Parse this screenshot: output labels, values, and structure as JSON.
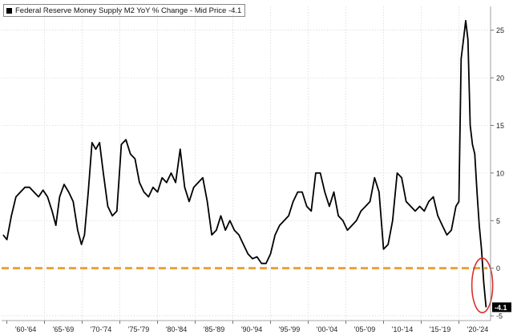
{
  "chart_data": {
    "type": "line",
    "legend": {
      "label": "Federal Reserve Money Supply M2 YoY % Change - Mid Price -4.1",
      "position": "top-left"
    },
    "x_ticks": [
      "'60-'64",
      "'65-'69",
      "'70-'74",
      "'75-'79",
      "'80-'84",
      "'85-'89",
      "'90-'94",
      "'95-'99",
      "'00-'04",
      "'05-'09",
      "'10-'14",
      "'15-'19",
      "'20-'24"
    ],
    "y_ticks": [
      25,
      20,
      15,
      10,
      5,
      0,
      -5
    ],
    "ylim": [
      -5.5,
      27.5
    ],
    "xlim": [
      1959.3,
      2024.2
    ],
    "grid": true,
    "last_value_label": "-4.1",
    "reference_line": {
      "y": 0,
      "color": "#E8A33A",
      "style": "dashed"
    },
    "highlight_circle": {
      "x": 2023.1,
      "y": -1.8,
      "color": "#D9302C"
    },
    "series": [
      {
        "color": "#000000",
        "x": [
          1959.5,
          1960.0,
          1960.6,
          1961.2,
          1961.8,
          1962.4,
          1963.0,
          1963.6,
          1964.2,
          1964.8,
          1965.4,
          1966.0,
          1966.5,
          1967.0,
          1967.6,
          1968.2,
          1968.8,
          1969.4,
          1969.9,
          1970.3,
          1970.8,
          1971.3,
          1971.8,
          1972.3,
          1972.8,
          1973.4,
          1974.0,
          1974.6,
          1975.2,
          1975.8,
          1976.4,
          1977.0,
          1977.6,
          1978.2,
          1978.8,
          1979.4,
          1980.0,
          1980.6,
          1981.2,
          1981.8,
          1982.4,
          1983.0,
          1983.6,
          1984.2,
          1984.8,
          1985.4,
          1986.0,
          1986.6,
          1987.2,
          1987.8,
          1988.4,
          1989.0,
          1989.6,
          1990.2,
          1990.8,
          1991.4,
          1992.0,
          1992.6,
          1993.2,
          1993.8,
          1994.4,
          1995.0,
          1995.6,
          1996.2,
          1996.8,
          1997.4,
          1998.0,
          1998.6,
          1999.2,
          1999.8,
          2000.4,
          2001.0,
          2001.6,
          2002.2,
          2002.8,
          2003.4,
          2004.0,
          2004.6,
          2005.2,
          2005.8,
          2006.4,
          2007.0,
          2007.6,
          2008.2,
          2008.8,
          2009.4,
          2010.0,
          2010.6,
          2011.2,
          2011.8,
          2012.4,
          2013.0,
          2013.6,
          2014.2,
          2014.8,
          2015.4,
          2016.0,
          2016.6,
          2017.2,
          2017.8,
          2018.4,
          2019.0,
          2019.6,
          2020.0,
          2020.3,
          2020.6,
          2020.9,
          2021.2,
          2021.5,
          2021.8,
          2022.1,
          2022.4,
          2022.7,
          2023.0,
          2023.3,
          2023.6
        ],
        "y": [
          3.5,
          3.0,
          5.5,
          7.5,
          8.0,
          8.5,
          8.5,
          8.0,
          7.5,
          8.2,
          7.5,
          6.0,
          4.5,
          7.5,
          8.8,
          8.0,
          7.0,
          4.0,
          2.5,
          3.5,
          8.0,
          13.2,
          12.5,
          13.2,
          10.0,
          6.5,
          5.5,
          6.0,
          13.0,
          13.5,
          12.0,
          11.5,
          9.0,
          8.0,
          7.5,
          8.5,
          8.0,
          9.5,
          9.0,
          10.0,
          9.0,
          12.5,
          8.5,
          7.0,
          8.5,
          9.0,
          9.5,
          7.0,
          3.5,
          4.0,
          5.5,
          4.0,
          5.0,
          4.0,
          3.5,
          2.5,
          1.5,
          1.0,
          1.2,
          0.5,
          0.5,
          1.5,
          3.5,
          4.5,
          5.0,
          5.5,
          7.0,
          8.0,
          8.0,
          6.5,
          6.0,
          10.0,
          10.0,
          8.0,
          6.5,
          8.0,
          5.5,
          5.0,
          4.0,
          4.5,
          5.0,
          6.0,
          6.5,
          7.0,
          9.5,
          8.0,
          2.0,
          2.5,
          5.0,
          10.0,
          9.5,
          7.0,
          6.5,
          6.0,
          6.5,
          6.0,
          7.0,
          7.5,
          5.5,
          4.5,
          3.5,
          4.0,
          6.5,
          7.0,
          22.0,
          24.0,
          26.0,
          24.0,
          15.0,
          13.0,
          12.0,
          8.0,
          4.5,
          2.0,
          -1.5,
          -4.1
        ]
      }
    ]
  }
}
